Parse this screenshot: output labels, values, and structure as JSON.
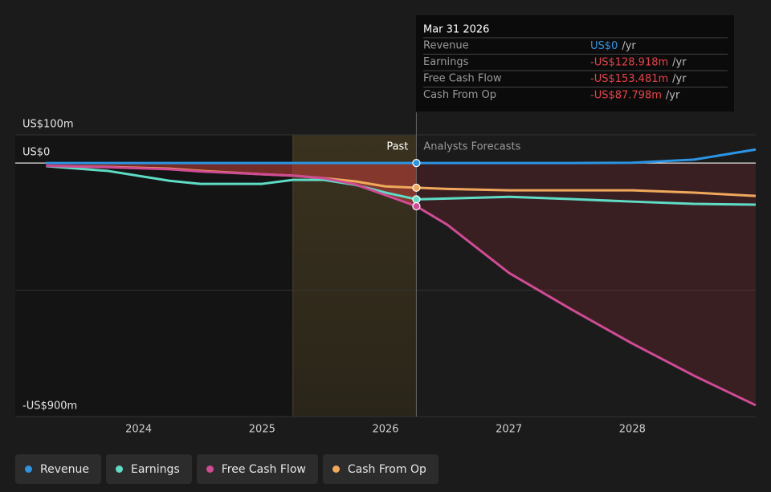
{
  "chart_data": {
    "type": "line",
    "x": [
      2023.25,
      2023.75,
      2024.25,
      2024.5,
      2025,
      2025.25,
      2025.5,
      2025.75,
      2026,
      2026.25,
      2026.5,
      2027,
      2027.5,
      2028,
      2028.5,
      2029
    ],
    "series": [
      {
        "name": "Revenue",
        "color": "#2b94e3",
        "values": [
          0,
          0,
          0,
          0,
          0,
          0,
          0,
          0,
          0,
          0,
          0,
          0,
          0,
          1,
          12,
          48
        ]
      },
      {
        "name": "Earnings",
        "color": "#5fdcc6",
        "values": [
          -11,
          -28,
          -63,
          -74,
          -74,
          -60,
          -60,
          -77,
          -105,
          -128.918,
          -126,
          -120,
          -128,
          -137,
          -145,
          -148
        ]
      },
      {
        "name": "Free Cash Flow",
        "color": "#cf4b94",
        "values": [
          -10,
          -15,
          -22,
          -30,
          -40,
          -45,
          -54,
          -75,
          -114,
          -153.481,
          -219,
          -390,
          -518,
          -641,
          -755,
          -860
        ]
      },
      {
        "name": "Cash From Op",
        "color": "#f0a95c",
        "values": [
          -11,
          -14,
          -20,
          -28,
          -40,
          -45,
          -54,
          -65,
          -83,
          -87.798,
          -92,
          -97,
          -97,
          -97,
          -105,
          -117
        ]
      }
    ],
    "xlim": [
      2023,
      2029
    ],
    "xticks": [
      2024,
      2025,
      2026,
      2027,
      2028
    ],
    "ylim": [
      -900,
      100
    ],
    "yticks": [
      {
        "value": 100,
        "label": "US$100m"
      },
      {
        "value": 0,
        "label": "US$0"
      },
      {
        "value": -900,
        "label": "-US$900m"
      }
    ],
    "past_label": "Past",
    "forecast_label": "Analysts Forecasts",
    "past_start": 2025.25,
    "divider": 2026.25,
    "tooltip": {
      "date": "Mar 31 2026",
      "rows": [
        {
          "label": "Revenue",
          "value": "US$0",
          "unit": "/yr",
          "color": "#2b94e3"
        },
        {
          "label": "Earnings",
          "value": "-US$128.918m",
          "unit": "/yr",
          "color": "#e8424a"
        },
        {
          "label": "Free Cash Flow",
          "value": "-US$153.481m",
          "unit": "/yr",
          "color": "#e8424a"
        },
        {
          "label": "Cash From Op",
          "value": "-US$87.798m",
          "unit": "/yr",
          "color": "#e8424a"
        }
      ]
    }
  }
}
